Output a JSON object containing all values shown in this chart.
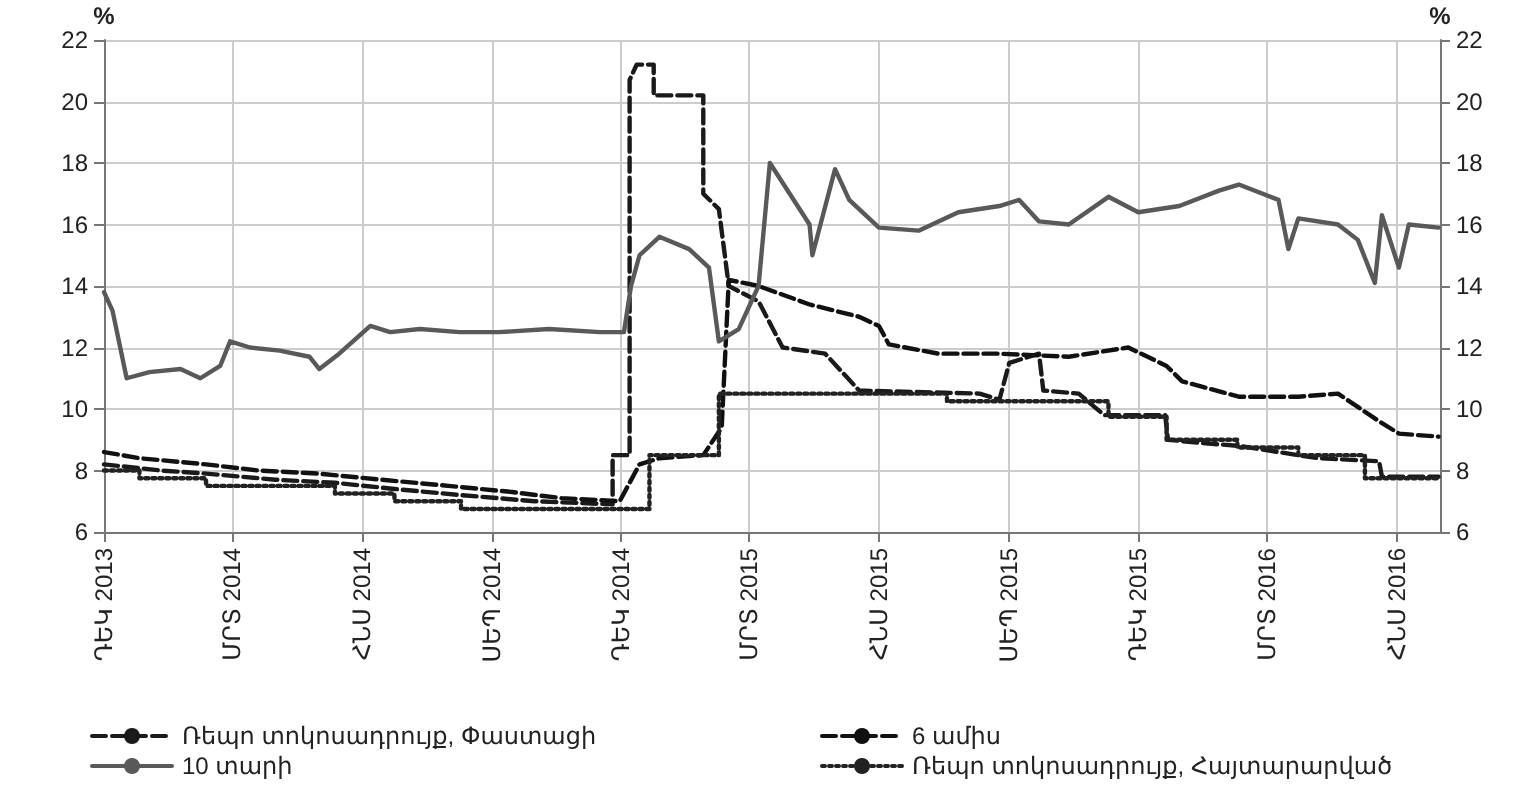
{
  "chart_data": {
    "type": "line",
    "ylabel": "%",
    "y2label": "%",
    "ylim": [
      6,
      22
    ],
    "yticks": [
      6,
      8,
      10,
      12,
      14,
      16,
      18,
      20,
      22
    ],
    "y2lim": [
      6,
      22
    ],
    "y2ticks": [
      6,
      8,
      10,
      12,
      14,
      16,
      18,
      20,
      22
    ],
    "xlim": [
      "2013-12-01",
      "2016-07-01"
    ],
    "xticks": [
      {
        "value": "2013-12-01",
        "label": "ԴԵԿ 2013"
      },
      {
        "value": "2014-03-01",
        "label": "ՄՐՏ 2014"
      },
      {
        "value": "2014-06-01",
        "label": "ՀՆՍ 2014"
      },
      {
        "value": "2014-09-01",
        "label": "ՍԵՊ 2014"
      },
      {
        "value": "2014-12-01",
        "label": "ԴԵԿ 2014"
      },
      {
        "value": "2015-03-01",
        "label": "ՄՐՏ 2015"
      },
      {
        "value": "2015-06-01",
        "label": "ՀՆՍ 2015"
      },
      {
        "value": "2015-09-01",
        "label": "ՍԵՊ 2015"
      },
      {
        "value": "2015-12-01",
        "label": "ԴԵԿ 2015"
      },
      {
        "value": "2016-03-01",
        "label": "ՄՐՏ 2016"
      },
      {
        "value": "2016-06-01",
        "label": "ՀՆՍ 2016"
      }
    ],
    "grid": true,
    "legend": "bottom",
    "marker": "none",
    "series": [
      {
        "name": "Ռեպո տոկոսադրույք, Փաստացի",
        "color": "#1a1a1a",
        "line_style": "dashed",
        "x": [
          "2013-12-01",
          "2014-01-10",
          "2014-02-11",
          "2014-04-01",
          "2014-05-13",
          "2014-06-24",
          "2014-08-10",
          "2014-10-01",
          "2014-11-25",
          "2014-11-25",
          "2014-12-07",
          "2014-12-07",
          "2014-12-12",
          "2014-12-24",
          "2014-12-24",
          "2015-01-28",
          "2015-01-28",
          "2015-02-08",
          "2015-02-15",
          "2015-03-08",
          "2015-03-25",
          "2015-04-24",
          "2015-05-18",
          "2015-08-11",
          "2015-08-25",
          "2015-09-01",
          "2015-09-22",
          "2015-09-25",
          "2015-10-20",
          "2015-11-07",
          "2015-12-20",
          "2015-12-22",
          "2016-01-13",
          "2016-02-10",
          "2016-03-09",
          "2016-04-06",
          "2016-05-19",
          "2016-05-21",
          "2016-06-30"
        ],
        "values": [
          8.2,
          8.0,
          7.9,
          7.7,
          7.6,
          7.4,
          7.2,
          7.0,
          6.9,
          8.5,
          8.5,
          20.7,
          21.2,
          21.2,
          20.2,
          20.2,
          17.0,
          16.5,
          14.0,
          13.5,
          12.0,
          11.8,
          10.6,
          10.5,
          10.3,
          11.5,
          11.8,
          10.6,
          10.5,
          9.8,
          9.8,
          9.0,
          8.9,
          8.8,
          8.6,
          8.4,
          8.3,
          7.8,
          7.8
        ]
      },
      {
        "name": "6 ամիս",
        "color": "#111111",
        "line_style": "dashed",
        "x": [
          "2013-12-01",
          "2013-12-26",
          "2014-02-11",
          "2014-03-20",
          "2014-05-01",
          "2014-06-15",
          "2014-08-01",
          "2014-09-15",
          "2014-10-20",
          "2014-11-30",
          "2014-12-07",
          "2014-12-14",
          "2014-12-28",
          "2015-01-28",
          "2015-02-10",
          "2015-02-15",
          "2015-03-08",
          "2015-04-13",
          "2015-05-18",
          "2015-06-01",
          "2015-06-08",
          "2015-07-13",
          "2015-08-25",
          "2015-10-13",
          "2015-11-24",
          "2015-12-21",
          "2016-01-01",
          "2016-02-10",
          "2016-03-23",
          "2016-04-20",
          "2016-05-19",
          "2016-06-02",
          "2016-06-30"
        ],
        "values": [
          8.6,
          8.4,
          8.2,
          8.0,
          7.9,
          7.7,
          7.5,
          7.3,
          7.1,
          7.0,
          7.6,
          8.2,
          8.4,
          8.5,
          9.4,
          14.2,
          14.0,
          13.4,
          13.0,
          12.7,
          12.1,
          11.8,
          11.8,
          11.7,
          12.0,
          11.4,
          10.9,
          10.4,
          10.4,
          10.5,
          9.6,
          9.2,
          9.1
        ]
      },
      {
        "name": "10 տարի",
        "color": "#595959",
        "line_style": "solid",
        "x": [
          "2013-12-01",
          "2013-12-07",
          "2013-12-17",
          "2014-01-02",
          "2014-01-24",
          "2014-02-07",
          "2014-02-21",
          "2014-02-28",
          "2014-03-14",
          "2014-04-04",
          "2014-04-25",
          "2014-05-02",
          "2014-05-16",
          "2014-06-07",
          "2014-06-21",
          "2014-07-12",
          "2014-08-09",
          "2014-09-06",
          "2014-10-11",
          "2014-11-16",
          "2014-12-03",
          "2014-12-08",
          "2014-12-14",
          "2014-12-28",
          "2015-01-18",
          "2015-02-01",
          "2015-02-08",
          "2015-02-22",
          "2015-03-08",
          "2015-03-16",
          "2015-03-30",
          "2015-04-13",
          "2015-04-15",
          "2015-05-01",
          "2015-05-11",
          "2015-06-01",
          "2015-06-29",
          "2015-07-27",
          "2015-08-25",
          "2015-09-08",
          "2015-09-22",
          "2015-10-13",
          "2015-11-10",
          "2015-12-01",
          "2015-12-30",
          "2016-01-27",
          "2016-02-10",
          "2016-03-09",
          "2016-03-16",
          "2016-03-23",
          "2016-04-20",
          "2016-05-04",
          "2016-05-16",
          "2016-05-21",
          "2016-06-02",
          "2016-06-09",
          "2016-06-30"
        ],
        "values": [
          13.8,
          13.2,
          11.0,
          11.2,
          11.3,
          11.0,
          11.4,
          12.2,
          12.0,
          11.9,
          11.7,
          11.3,
          11.8,
          12.7,
          12.5,
          12.6,
          12.5,
          12.5,
          12.6,
          12.5,
          12.5,
          14.0,
          15.0,
          15.6,
          15.2,
          14.6,
          12.2,
          12.6,
          14.0,
          18.0,
          17.0,
          16.0,
          15.0,
          17.8,
          16.8,
          15.9,
          15.8,
          16.4,
          16.6,
          16.8,
          16.1,
          16.0,
          16.9,
          16.4,
          16.6,
          17.1,
          17.3,
          16.8,
          15.2,
          16.2,
          16.0,
          15.5,
          14.1,
          16.3,
          14.6,
          16.0,
          15.9
        ]
      },
      {
        "name": "Ռեպո տոկոսադրույք, Հայտարարված",
        "color": "#222222",
        "line_style": "dotted",
        "x": [
          "2013-12-01",
          "2013-12-26",
          "2013-12-26",
          "2014-02-11",
          "2014-02-11",
          "2014-05-13",
          "2014-05-13",
          "2014-06-24",
          "2014-06-24",
          "2014-08-10",
          "2014-08-10",
          "2014-12-21",
          "2014-12-21",
          "2015-02-08",
          "2015-02-08",
          "2015-07-19",
          "2015-07-19",
          "2015-11-10",
          "2015-11-10",
          "2015-12-21",
          "2015-12-21",
          "2016-02-09",
          "2016-02-09",
          "2016-03-23",
          "2016-03-23",
          "2016-05-09",
          "2016-05-09",
          "2016-06-30"
        ],
        "values": [
          8.0,
          8.0,
          7.75,
          7.75,
          7.5,
          7.5,
          7.25,
          7.25,
          7.0,
          7.0,
          6.75,
          6.75,
          8.5,
          8.5,
          10.5,
          10.5,
          10.25,
          10.25,
          9.75,
          9.75,
          9.0,
          9.0,
          8.75,
          8.75,
          8.5,
          8.5,
          7.75,
          7.75
        ]
      }
    ]
  }
}
